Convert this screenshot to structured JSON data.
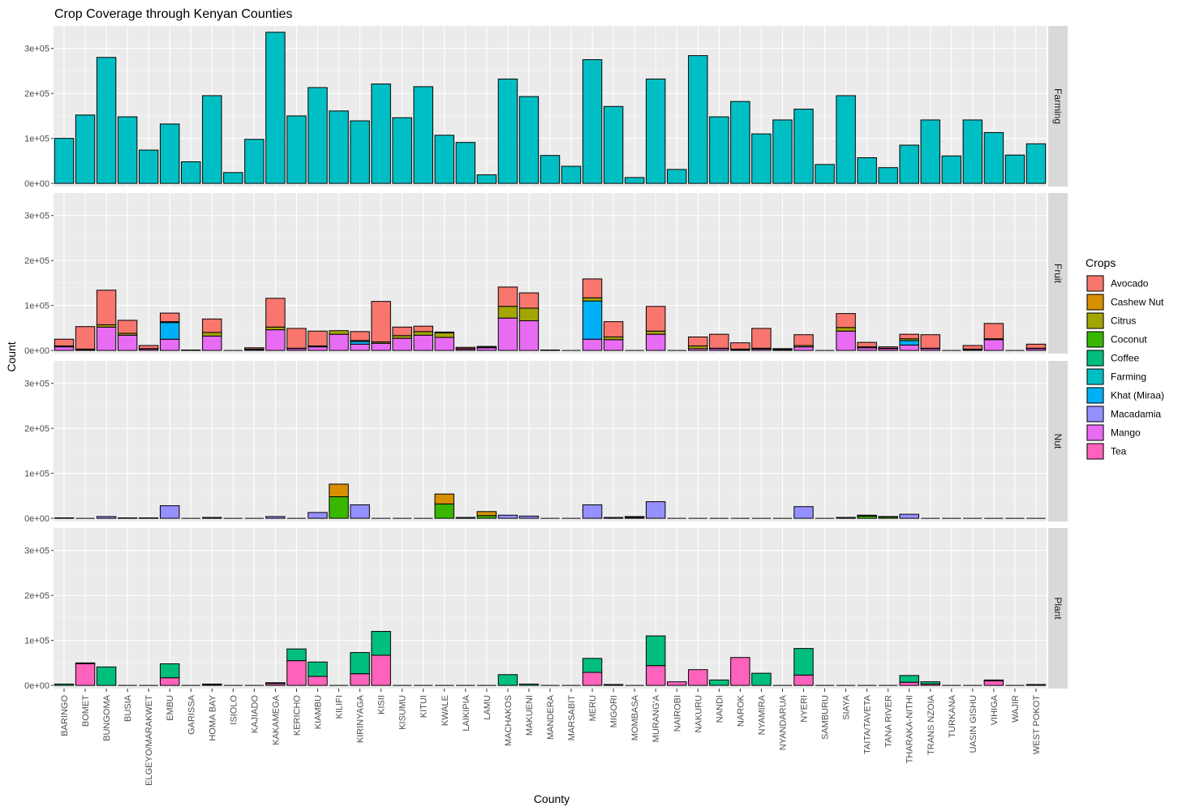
{
  "chart_data": {
    "type": "bar",
    "stacked": true,
    "faceted_by": "rows",
    "title": "Crop Coverage through Kenyan Counties",
    "xlabel": "County",
    "ylabel": "Count",
    "legend_title": "Crops",
    "legend_position": "right",
    "grid": true,
    "ylim": [
      -7000,
      350000
    ],
    "y_ticks": [
      {
        "value": 0,
        "label": "0e+00"
      },
      {
        "value": 100000,
        "label": "1e+05"
      },
      {
        "value": 200000,
        "label": "2e+05"
      },
      {
        "value": 300000,
        "label": "3e+05"
      }
    ],
    "categories": [
      "BARINGO",
      "BOMET",
      "BUNGOMA",
      "BUSIA",
      "ELGEYO/MARAKWET",
      "EMBU",
      "GARISSA",
      "HOMA BAY",
      "ISIOLO",
      "KAJIADO",
      "KAKAMEGA",
      "KERICHO",
      "KIAMBU",
      "KILIFI",
      "KIRINYAGA",
      "KISII",
      "KISUMU",
      "KITUI",
      "KWALE",
      "LAIKIPIA",
      "LAMU",
      "MACHAKOS",
      "MAKUENI",
      "MANDERA",
      "MARSABIT",
      "MERU",
      "MIGORI",
      "MOMBASA",
      "MURANG'A",
      "NAIROBI",
      "NAKURU",
      "NANDI",
      "NAROK",
      "NYAMIRA",
      "NYANDARUA",
      "NYERI",
      "SAMBURU",
      "SIAYA",
      "TAITA/TAVETA",
      "TANA RIVER",
      "THARAKA-NITHI",
      "TRANS NZOIA",
      "TURKANA",
      "UASIN GISHU",
      "VIHIGA",
      "WAJIR",
      "WEST POKOT"
    ],
    "crops": [
      {
        "name": "Avocado",
        "color": "#F8766D"
      },
      {
        "name": "Cashew Nut",
        "color": "#D89000"
      },
      {
        "name": "Citrus",
        "color": "#A3A500"
      },
      {
        "name": "Coconut",
        "color": "#39B600"
      },
      {
        "name": "Coffee",
        "color": "#00BF7D"
      },
      {
        "name": "Farming",
        "color": "#00BFC4"
      },
      {
        "name": "Khat (Miraa)",
        "color": "#00B0F6"
      },
      {
        "name": "Macadamia",
        "color": "#9590FF"
      },
      {
        "name": "Mango",
        "color": "#E76BF3"
      },
      {
        "name": "Tea",
        "color": "#FF62BC"
      }
    ],
    "panels": [
      {
        "strip": "Farming",
        "series": [
          {
            "crop": "Farming",
            "values": [
              100000,
              152000,
              280000,
              148000,
              74000,
              132000,
              48000,
              195000,
              24000,
              98000,
              336000,
              150000,
              213000,
              161000,
              139000,
              221000,
              146000,
              215000,
              107000,
              91000,
              19000,
              232000,
              193000,
              62000,
              38000,
              275000,
              171000,
              13000,
              232000,
              31000,
              284000,
              148000,
              182000,
              110000,
              141000,
              165000,
              42000,
              195000,
              57000,
              35000,
              85000,
              141000,
              61000,
              141000,
              113000,
              63000,
              88000
            ]
          }
        ]
      },
      {
        "strip": "Fruit",
        "series": [
          {
            "crop": "Mango",
            "values": [
              8000,
              2000,
              52000,
              34000,
              3000,
              25000,
              0,
              32000,
              0,
              2000,
              46000,
              4000,
              8000,
              36000,
              14000,
              16000,
              27000,
              34000,
              29000,
              3000,
              6000,
              72000,
              66000,
              1000,
              0,
              25000,
              24000,
              0,
              36000,
              0,
              4000,
              4000,
              2000,
              3000,
              2000,
              8000,
              0,
              43000,
              6000,
              4000,
              12000,
              4000,
              0,
              2000,
              24000,
              0,
              4000
            ]
          },
          {
            "crop": "Khat (Miraa)",
            "values": [
              0,
              0,
              0,
              0,
              0,
              37000,
              0,
              0,
              0,
              0,
              0,
              0,
              0,
              0,
              6000,
              0,
              0,
              0,
              0,
              0,
              0,
              0,
              0,
              0,
              0,
              85000,
              0,
              0,
              0,
              0,
              0,
              0,
              0,
              0,
              0,
              0,
              0,
              0,
              0,
              0,
              10000,
              0,
              0,
              0,
              0,
              0,
              0
            ]
          },
          {
            "crop": "Citrus",
            "values": [
              2000,
              1000,
              5000,
              4000,
              1000,
              2000,
              0,
              8000,
              0,
              1000,
              6000,
              1000,
              2000,
              8000,
              2000,
              3000,
              6000,
              8000,
              10000,
              1000,
              1000,
              26000,
              28000,
              0,
              0,
              7000,
              6000,
              0,
              7000,
              0,
              6000,
              1000,
              1000,
              2000,
              1000,
              3000,
              0,
              8000,
              2000,
              1000,
              4000,
              1000,
              0,
              1000,
              2000,
              0,
              1000
            ]
          },
          {
            "crop": "Cashew Nut",
            "values": [
              0,
              0,
              0,
              0,
              0,
              0,
              0,
              0,
              0,
              0,
              0,
              0,
              0,
              0,
              0,
              0,
              0,
              0,
              2000,
              0,
              0,
              0,
              0,
              0,
              0,
              0,
              0,
              0,
              0,
              0,
              0,
              0,
              0,
              0,
              0,
              0,
              0,
              0,
              0,
              0,
              0,
              0,
              0,
              0,
              0,
              0,
              0
            ]
          },
          {
            "crop": "Avocado",
            "values": [
              15000,
              50000,
              77000,
              29000,
              7000,
              19000,
              1000,
              30000,
              0,
              3000,
              64000,
              44000,
              33000,
              0,
              20000,
              90000,
              19000,
              12000,
              0,
              3000,
              2000,
              43000,
              34000,
              0,
              0,
              42000,
              34000,
              0,
              55000,
              0,
              20000,
              31000,
              14000,
              44000,
              1000,
              24000,
              0,
              31000,
              10000,
              3000,
              10000,
              30000,
              0,
              8000,
              34000,
              0,
              9000
            ]
          }
        ]
      },
      {
        "strip": "Nut",
        "series": [
          {
            "crop": "Coconut",
            "values": [
              0,
              0,
              0,
              0,
              0,
              0,
              0,
              0,
              0,
              0,
              0,
              0,
              0,
              48000,
              0,
              0,
              0,
              0,
              32000,
              0,
              6000,
              0,
              0,
              0,
              0,
              0,
              0,
              2000,
              0,
              0,
              0,
              0,
              0,
              0,
              0,
              0,
              0,
              0,
              5000,
              3000,
              0,
              0,
              0,
              0,
              0,
              0,
              0
            ]
          },
          {
            "crop": "Macadamia",
            "values": [
              1000,
              0,
              4000,
              1000,
              1000,
              28000,
              0,
              2000,
              0,
              0,
              4000,
              0,
              13000,
              0,
              30000,
              0,
              0,
              0,
              0,
              2000,
              0,
              7000,
              5000,
              0,
              0,
              30000,
              2000,
              0,
              37000,
              0,
              0,
              0,
              0,
              0,
              0,
              26000,
              0,
              2000,
              0,
              0,
              9000,
              0,
              0,
              0,
              0,
              0,
              0
            ]
          },
          {
            "crop": "Cashew Nut",
            "values": [
              0,
              0,
              0,
              0,
              0,
              0,
              0,
              0,
              0,
              0,
              0,
              0,
              0,
              28000,
              0,
              0,
              0,
              0,
              22000,
              0,
              9000,
              0,
              0,
              0,
              0,
              0,
              0,
              2000,
              0,
              0,
              0,
              0,
              0,
              0,
              0,
              0,
              0,
              0,
              2000,
              1000,
              0,
              0,
              0,
              0,
              0,
              0,
              0
            ]
          }
        ]
      },
      {
        "strip": "Plant",
        "series": [
          {
            "crop": "Tea",
            "values": [
              0,
              48000,
              0,
              0,
              0,
              17000,
              0,
              2000,
              0,
              0,
              4000,
              55000,
              20000,
              0,
              26000,
              67000,
              0,
              0,
              0,
              0,
              0,
              0,
              0,
              0,
              0,
              29000,
              0,
              0,
              44000,
              8000,
              35000,
              0,
              62000,
              0,
              0,
              23000,
              0,
              0,
              0,
              0,
              7000,
              3000,
              0,
              0,
              10000,
              0,
              0
            ]
          },
          {
            "crop": "Coffee",
            "values": [
              3000,
              2000,
              41000,
              0,
              0,
              31000,
              0,
              1000,
              0,
              0,
              2000,
              26000,
              32000,
              0,
              47000,
              53000,
              0,
              0,
              0,
              0,
              0,
              24000,
              3000,
              0,
              0,
              31000,
              2000,
              0,
              66000,
              0,
              0,
              12000,
              0,
              27000,
              0,
              59000,
              0,
              0,
              0,
              0,
              15000,
              5000,
              0,
              0,
              2000,
              0,
              2000
            ]
          }
        ]
      }
    ]
  }
}
